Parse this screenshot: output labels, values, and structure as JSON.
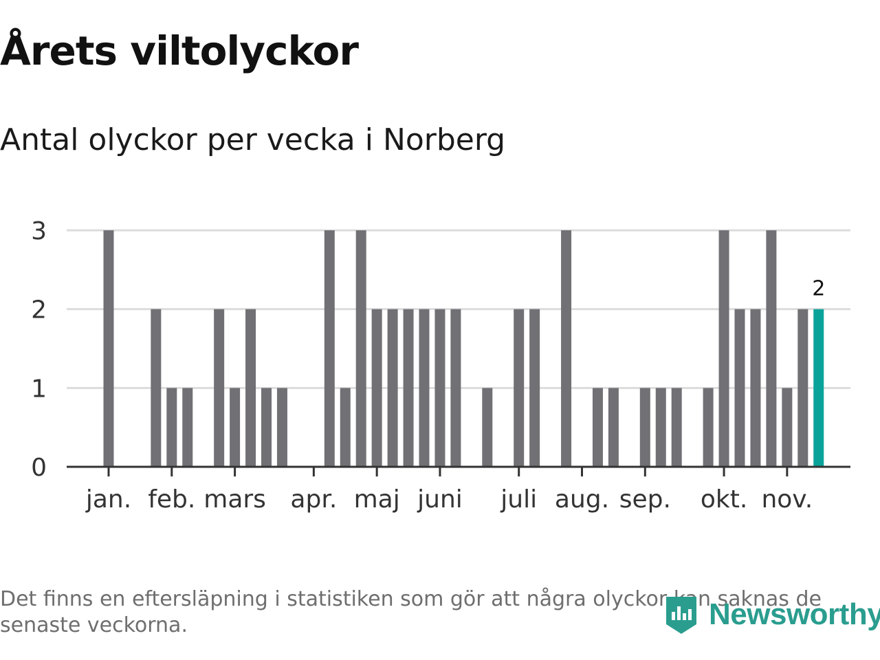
{
  "title": "Årets viltolyckor",
  "subtitle": "Antal olyckor per vecka i Norberg",
  "footnote": "Det finns en eftersläpning i statistiken som gör att några olyckor kan saknas de senaste veckorna.",
  "brand": "Newsworthy",
  "colors": {
    "bar": "#707075",
    "highlight": "#0aa39a",
    "grid": "#dcdcdc",
    "axis": "#333333",
    "brand": "#2a9d8f"
  },
  "chart_data": {
    "type": "bar",
    "title": "Årets viltolyckor",
    "subtitle": "Antal olyckor per vecka i Norberg",
    "xlabel": "",
    "ylabel": "",
    "ylim": [
      0,
      3
    ],
    "yticks": [
      "0",
      "1",
      "2",
      "3"
    ],
    "weeks": [
      1,
      2,
      3,
      4,
      5,
      6,
      7,
      8,
      9,
      10,
      11,
      12,
      13,
      14,
      15,
      16,
      17,
      18,
      19,
      20,
      21,
      22,
      23,
      24,
      25,
      26,
      27,
      28,
      29,
      30,
      31,
      32,
      33,
      34,
      35,
      36,
      37,
      38,
      39,
      40,
      41,
      42,
      43,
      44,
      45,
      46
    ],
    "values": [
      3,
      0,
      0,
      2,
      1,
      1,
      0,
      2,
      1,
      2,
      1,
      1,
      0,
      0,
      3,
      1,
      3,
      2,
      2,
      2,
      2,
      2,
      2,
      0,
      1,
      0,
      2,
      2,
      0,
      3,
      0,
      1,
      1,
      0,
      1,
      1,
      1,
      0,
      1,
      3,
      2,
      2,
      3,
      1,
      2,
      2
    ],
    "highlight_index": 45,
    "highlight_label": "2",
    "month_ticks": [
      {
        "label": "jan.",
        "week": 1
      },
      {
        "label": "feb.",
        "week": 5
      },
      {
        "label": "mars",
        "week": 9
      },
      {
        "label": "apr.",
        "week": 14
      },
      {
        "label": "maj",
        "week": 18
      },
      {
        "label": "juni",
        "week": 22
      },
      {
        "label": "juli",
        "week": 27
      },
      {
        "label": "aug.",
        "week": 31
      },
      {
        "label": "sep.",
        "week": 35
      },
      {
        "label": "okt.",
        "week": 40
      },
      {
        "label": "nov.",
        "week": 44
      }
    ]
  }
}
